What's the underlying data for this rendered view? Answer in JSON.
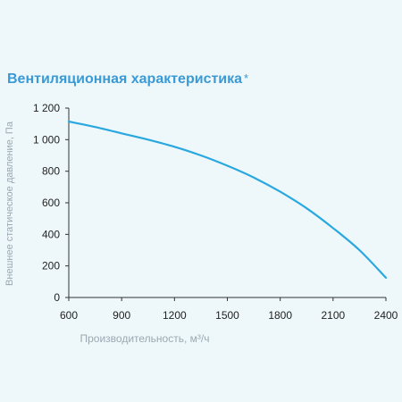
{
  "chart_data": {
    "type": "line",
    "title": "Вентиляционная характеристика",
    "title_mark": "*",
    "xlabel": "Производительность, м³/ч",
    "ylabel": "Внешнее статическое давление, Па",
    "xlim": [
      600,
      2400
    ],
    "ylim": [
      0,
      1200
    ],
    "x_ticks": [
      600,
      900,
      1200,
      1500,
      1800,
      2100,
      2400
    ],
    "y_ticks": [
      0,
      200,
      400,
      600,
      800,
      1000,
      1200
    ],
    "x_tick_labels": [
      "600",
      "900",
      "1200",
      "1500",
      "1800",
      "2100",
      "2400"
    ],
    "y_tick_labels": [
      "0",
      "200",
      "400",
      "600",
      "800",
      "1 000",
      "1 200"
    ],
    "series": [
      {
        "color": "#29a8df",
        "x": [
          600,
          750,
          900,
          1050,
          1200,
          1350,
          1500,
          1650,
          1800,
          1950,
          2100,
          2250,
          2400
        ],
        "y": [
          1115,
          1080,
          1040,
          1000,
          955,
          900,
          835,
          760,
          670,
          565,
          440,
          300,
          125
        ]
      }
    ],
    "grid": false,
    "colors": {
      "line": "#29a8df",
      "title": "#3a9ad6",
      "axis": "#333333",
      "tick_label": "#222222",
      "axis_label": "#9aa8b2"
    }
  }
}
